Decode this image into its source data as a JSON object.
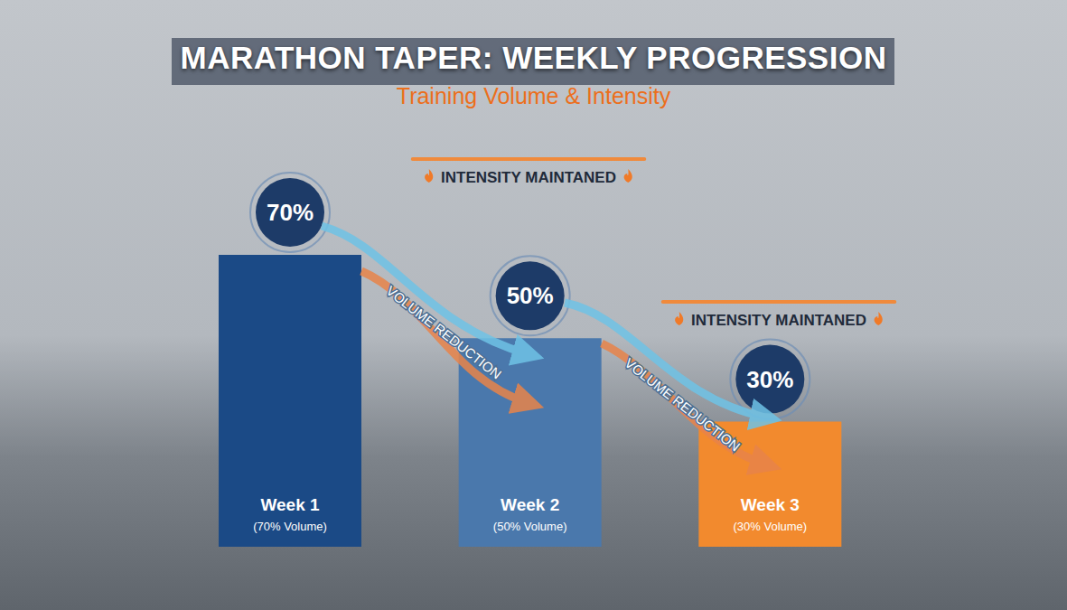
{
  "chart_data": {
    "type": "bar",
    "title": "MARATHON TAPER: WEEKLY PROGRESSION",
    "subtitle": "Training Volume & Intensity",
    "categories": [
      "Week 1",
      "Week 2",
      "Week 3"
    ],
    "category_notes": [
      "(70% Volume)",
      "(50% Volume)",
      "(30% Volume)"
    ],
    "values": [
      70,
      50,
      30
    ],
    "value_labels": [
      "70%",
      "50%",
      "30%"
    ],
    "colors": [
      "#1b4a86",
      "#4a78ac",
      "#f28a2e"
    ],
    "ylim": [
      0,
      70
    ],
    "data_labels": true,
    "tick_labels": false,
    "grid": false,
    "annotations": [
      "INTENSITY MAINTANED",
      "INTENSITY MAINTANED",
      "VOLUME REDUCTION",
      "VOLUME REDUCTION"
    ]
  }
}
